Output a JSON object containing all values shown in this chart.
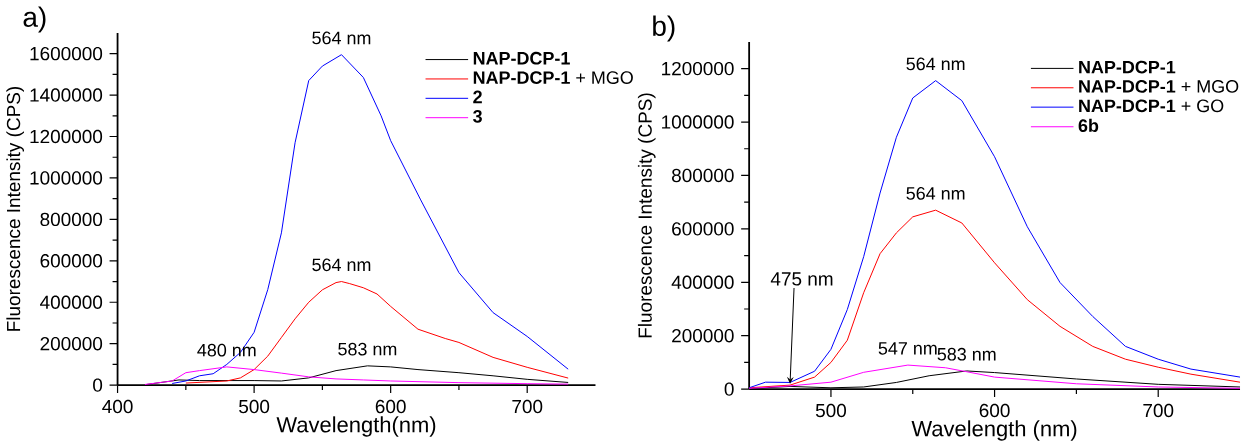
{
  "chart_data": [
    {
      "type": "line",
      "title": "a)",
      "xlabel": "Wavelength(nm)",
      "ylabel": "Fluorescence Intensity (CPS)",
      "xlim": [
        400,
        750
      ],
      "xticks": [
        400,
        500,
        600,
        700
      ],
      "ylim": [
        0,
        1700000
      ],
      "yticks": [
        0,
        200000,
        400000,
        600000,
        800000,
        1000000,
        1200000,
        1400000,
        1600000
      ],
      "legend": "top right",
      "series": [
        {
          "name": "**NAP-DCP-1**",
          "color": "#000000",
          "x": [
            420,
            445,
            460,
            480,
            500,
            520,
            540,
            560,
            583,
            600,
            620,
            650,
            675,
            700,
            730
          ],
          "values": [
            2000,
            25000,
            22000,
            22000,
            22000,
            20000,
            35000,
            70000,
            93000,
            88000,
            75000,
            60000,
            45000,
            28000,
            13000
          ]
        },
        {
          "name": "**NAP-DCP-1** + MGO",
          "color": "#ff0000",
          "x": [
            450,
            480,
            490,
            500,
            510,
            520,
            530,
            540,
            550,
            560,
            564,
            570,
            580,
            590,
            600,
            620,
            640,
            650,
            675,
            700,
            730
          ],
          "values": [
            10000,
            20000,
            35000,
            75000,
            140000,
            230000,
            320000,
            400000,
            460000,
            495000,
            500000,
            490000,
            470000,
            440000,
            380000,
            270000,
            225000,
            206000,
            134000,
            86000,
            34000
          ]
        },
        {
          "name": "**2**",
          "color": "#0000ff",
          "x": [
            440,
            450,
            460,
            470,
            480,
            490,
            500,
            510,
            520,
            530,
            540,
            550,
            564,
            580,
            593,
            600,
            622,
            650,
            675,
            700,
            730
          ],
          "values": [
            8000,
            20000,
            45000,
            55000,
            100000,
            158000,
            255000,
            461000,
            735000,
            1170000,
            1470000,
            1540000,
            1595000,
            1485000,
            1300000,
            1180000,
            894000,
            543000,
            350000,
            235000,
            77000
          ]
        },
        {
          "name": "**3**",
          "color": "#ff00ff",
          "x": [
            420,
            440,
            450,
            460,
            480,
            500,
            520,
            540,
            560,
            580,
            600,
            650,
            700,
            730
          ],
          "values": [
            3000,
            20000,
            60000,
            70000,
            88000,
            75000,
            58000,
            40000,
            30000,
            25000,
            20000,
            12000,
            7000,
            5000
          ]
        }
      ],
      "annotations": [
        {
          "text": "564 nm",
          "x": 564,
          "y": 1595000
        },
        {
          "text": "564 nm",
          "x": 564,
          "y": 500000
        },
        {
          "text": "583 nm",
          "x": 583,
          "y": 93000
        },
        {
          "text": "480 nm",
          "x": 480,
          "y": 88000
        }
      ]
    },
    {
      "type": "line",
      "title": "b)",
      "xlabel": "Wavelength (nm)",
      "ylabel": "Fluorescence Intensity (CPS)",
      "xlim": [
        450,
        750
      ],
      "xticks": [
        500,
        600,
        700
      ],
      "ylim": [
        0,
        1300000
      ],
      "yticks": [
        0,
        200000,
        400000,
        600000,
        800000,
        1000000,
        1200000
      ],
      "legend": "top right",
      "series": [
        {
          "name": "**NAP-DCP-1**",
          "color": "#000000",
          "x": [
            450,
            475,
            500,
            520,
            540,
            560,
            583,
            600,
            650,
            700,
            750
          ],
          "values": [
            2000,
            10000,
            5000,
            8000,
            25000,
            50000,
            68000,
            62000,
            38000,
            18000,
            8000
          ]
        },
        {
          "name": "**NAP-DCP-1** + MGO",
          "color": "#ff0000",
          "x": [
            450,
            475,
            490,
            500,
            510,
            520,
            530,
            540,
            550,
            564,
            580,
            600,
            620,
            640,
            660,
            680,
            700,
            720,
            750
          ],
          "values": [
            5000,
            15000,
            45000,
            100000,
            183000,
            361000,
            507000,
            585000,
            645000,
            670000,
            622000,
            473000,
            335000,
            235000,
            160000,
            112000,
            82000,
            56000,
            26000
          ]
        },
        {
          "name": "**NAP-DCP-1** + GO",
          "color": "#0000ff",
          "x": [
            450,
            460,
            475,
            490,
            500,
            510,
            520,
            530,
            540,
            550,
            564,
            580,
            600,
            620,
            640,
            660,
            680,
            700,
            720,
            750
          ],
          "values": [
            5000,
            26000,
            25000,
            67000,
            149000,
            298000,
            496000,
            734000,
            943000,
            1090000,
            1155000,
            1080000,
            870000,
            608000,
            399000,
            272000,
            160000,
            112000,
            75000,
            45000
          ]
        },
        {
          "name": "**6b**",
          "color": "#ff00ff",
          "x": [
            450,
            475,
            500,
            520,
            547,
            570,
            583,
            600,
            650,
            700,
            750
          ],
          "values": [
            3000,
            12000,
            26000,
            63000,
            90000,
            80000,
            65000,
            45000,
            20000,
            8000,
            3000
          ]
        }
      ],
      "annotations": [
        {
          "text": "564 nm",
          "x": 564,
          "y": 1155000
        },
        {
          "text": "564 nm",
          "x": 564,
          "y": 670000
        },
        {
          "text": "475 nm",
          "x": 475,
          "y": 20000
        },
        {
          "text": "547 nm",
          "x": 547,
          "y": 90000
        },
        {
          "text": "583 nm",
          "x": 583,
          "y": 68000
        }
      ]
    }
  ]
}
